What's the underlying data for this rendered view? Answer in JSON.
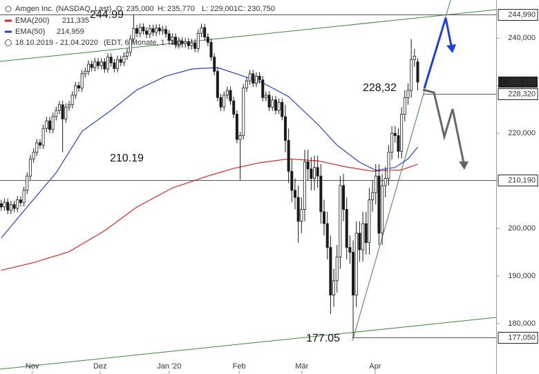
{
  "chart_data": {
    "type": "candlestick",
    "header": {
      "title": "Amgen Inc. (NASDAQ, Last)",
      "quote": [
        "O: 235,000",
        "H: 235,770",
        "L: 229,001",
        "C: 230,750"
      ],
      "date_range": "18.10.2019 - 21.04.2020",
      "period": "(EDT, 6 Monate, 1 Tag)"
    },
    "series": {
      "name": "Amgen Inc. (NASDAQ, Last)",
      "up_color": "#ffffff",
      "down_color": "#1a1a1a",
      "edge_color": "#1a1a1a",
      "open": [
        205.2,
        204.5,
        205.5,
        203.8,
        205,
        204.2,
        206,
        205.4,
        208,
        211,
        214.6,
        216,
        218,
        217.5,
        221,
        222.6,
        220.8,
        223.5,
        224.8,
        226,
        223,
        225.5,
        226,
        228,
        230,
        229.5,
        232.5,
        233,
        234.5,
        233.8,
        235,
        234.2,
        235,
        233.5,
        236,
        234.8,
        233.6,
        235.5,
        234.9,
        236.2,
        237,
        239.8,
        242,
        241,
        242.3,
        241.5,
        240.8,
        242,
        241.2,
        242.1,
        241.5,
        241.8,
        240.9,
        239.5,
        240.2,
        238.6,
        239.4,
        238.8,
        239.2,
        238.4,
        239,
        237.8,
        241,
        242.2,
        240.2,
        239.1,
        236,
        233,
        227.5,
        225.5,
        228,
        229,
        226.8,
        224,
        218.7,
        219.5,
        229.5,
        231,
        232.5,
        230.5,
        232,
        231.2,
        227.5,
        228,
        225.5,
        227,
        224.8,
        226.5,
        223.5,
        218.5,
        212,
        208,
        206.5,
        201.5,
        204,
        214,
        212.5,
        210.5,
        212.8,
        211,
        203.5,
        201,
        196,
        186,
        189,
        194,
        209,
        204,
        196,
        195,
        186,
        199,
        195.5,
        201,
        197,
        206,
        207.5,
        211,
        199,
        209,
        210.5,
        216,
        220,
        219.5,
        216.2,
        224,
        227.5,
        229,
        235.5,
        235
      ],
      "high": [
        206.0,
        206.3,
        206.3,
        205.8,
        205.8,
        206.8,
        206.8,
        208.8,
        211.8,
        215.4,
        216.8,
        218.8,
        218.8,
        221.8,
        223.4,
        223.4,
        224.3,
        225.6,
        226.8,
        226.8,
        226.3,
        226.8,
        228.8,
        230.8,
        230.8,
        233.3,
        233.8,
        235.3,
        235.3,
        235.8,
        235.8,
        235.8,
        235.8,
        236.8,
        236.8,
        235.6,
        236.3,
        236.3,
        237.0,
        237.8,
        240.6,
        244.99,
        242.8,
        243.1,
        243.1,
        242.3,
        242.8,
        242.8,
        242.9,
        242.9,
        242.6,
        242.6,
        241.7,
        241.0,
        241.0,
        240.2,
        240.2,
        240.0,
        240.0,
        239.8,
        239.8,
        241.8,
        243.0,
        243.0,
        241.0,
        239.9,
        236.8,
        233.8,
        228.3,
        228.8,
        229.8,
        229.8,
        227.6,
        224.8,
        220.3,
        230.3,
        231.8,
        233.3,
        233.3,
        232.8,
        232.8,
        232.0,
        228.8,
        228.8,
        227.8,
        227.8,
        227.3,
        227.3,
        226.0,
        221.0,
        214.5,
        210.5,
        209.0,
        206.5,
        216.5,
        216.5,
        215.0,
        215.3,
        215.3,
        213.5,
        206.0,
        203.5,
        198.5,
        191.5,
        196.5,
        211.0,
        211.5,
        206.5,
        198.5,
        197.5,
        201.5,
        201.5,
        203.5,
        203.5,
        208.5,
        210.0,
        213.5,
        213.5,
        211.5,
        213.0,
        217.5,
        221.5,
        221.5,
        221.0,
        225.5,
        229.0,
        230.5,
        239.8,
        237.7,
        235.77
      ],
      "low": [
        203.7,
        203.7,
        203.0,
        203.0,
        203.4,
        203.4,
        204.6,
        204.6,
        207.2,
        210.2,
        213.8,
        215.2,
        216.7,
        216.7,
        220.2,
        220.0,
        220.0,
        222.7,
        224.0,
        216.0,
        222.2,
        224.7,
        225.2,
        227.2,
        228.7,
        228.7,
        231.7,
        232.2,
        233.0,
        233.0,
        233.4,
        233.4,
        232.7,
        232.7,
        234.0,
        232.8,
        232.8,
        234.1,
        234.1,
        235.4,
        236.2,
        239.0,
        240.2,
        240.2,
        240.7,
        240.0,
        240.0,
        240.4,
        240.4,
        240.7,
        240.7,
        240.1,
        238.7,
        238.7,
        237.8,
        237.8,
        238.0,
        238.0,
        237.6,
        237.6,
        237.0,
        237.0,
        240.2,
        239.4,
        238.3,
        235.2,
        232.2,
        226.7,
        224.7,
        224.7,
        227.2,
        226.0,
        223.2,
        217.9,
        210.19,
        218.7,
        228.7,
        230.2,
        229.7,
        229.7,
        230.4,
        226.7,
        226.7,
        224.7,
        224.7,
        224.0,
        224.0,
        222.7,
        216.0,
        209.5,
        205.5,
        204.0,
        197.0,
        199.0,
        201.5,
        210.0,
        208.0,
        208.0,
        208.5,
        201.0,
        198.5,
        193.5,
        182.0,
        183.5,
        186.5,
        191.5,
        201.5,
        193.5,
        192.5,
        177.05,
        183.5,
        193.0,
        193.0,
        194.5,
        194.5,
        203.5,
        205.0,
        196.5,
        196.5,
        206.5,
        209.0,
        214.5,
        218.0,
        214.7,
        214.7,
        222.5,
        226.0,
        227.5,
        234.0,
        229.001
      ],
      "close": [
        204.5,
        205.5,
        203.8,
        205,
        204.2,
        206,
        205.4,
        208,
        211,
        214.6,
        216,
        218,
        217.5,
        221,
        222.6,
        220.8,
        223.5,
        224.8,
        226,
        223,
        225.5,
        226,
        228,
        230,
        229.5,
        232.5,
        233,
        234.5,
        233.8,
        235,
        234.2,
        235,
        233.5,
        236,
        234.8,
        233.6,
        235.5,
        234.9,
        236.2,
        237,
        239.8,
        242,
        241,
        242.3,
        241.5,
        240.8,
        242,
        241.2,
        242.1,
        241.5,
        241.8,
        240.9,
        239.5,
        240.2,
        238.6,
        239.4,
        238.8,
        239.2,
        238.4,
        239,
        237.8,
        241,
        242.2,
        240.2,
        239.1,
        236,
        233,
        227.5,
        225.5,
        228,
        229,
        226.8,
        224,
        218.7,
        219.5,
        229.5,
        231,
        232.5,
        230.5,
        232,
        231.2,
        227.5,
        228,
        225.5,
        227,
        224.8,
        226.5,
        223.5,
        218.5,
        212,
        208,
        206.5,
        201.5,
        204,
        214,
        212.5,
        210.5,
        212.8,
        211,
        203.5,
        201,
        196,
        186,
        189,
        194,
        209,
        204,
        196,
        195,
        186,
        199,
        195.5,
        201,
        197,
        206,
        207.5,
        211,
        199,
        209,
        210.5,
        216,
        220,
        219.5,
        216.2,
        224,
        227.5,
        229,
        235.5,
        236.2,
        230.75
      ]
    },
    "overlays": [
      {
        "name": "EMA(200)",
        "value_label": "211,335",
        "color": "#e02020",
        "x": [
          0,
          10,
          21,
          32,
          42,
          53,
          64,
          72,
          80,
          89,
          98,
          107,
          115,
          124,
          129
        ],
        "values": [
          191.2,
          192.8,
          195.1,
          199.5,
          204.5,
          208.5,
          211,
          212.6,
          213.8,
          214.6,
          214.2,
          212.9,
          212,
          212.3,
          213.5
        ]
      },
      {
        "name": "EMA(50)",
        "value_label": "214,959",
        "color": "#2040d0",
        "x": [
          0,
          8,
          17,
          25,
          34,
          42,
          51,
          59,
          67,
          75,
          81,
          89,
          98,
          104,
          111,
          116,
          122,
          126,
          129
        ],
        "values": [
          198,
          204.5,
          211.7,
          220.4,
          224.8,
          229.1,
          232,
          233.5,
          233.8,
          232,
          230.6,
          227.7,
          221.9,
          217.5,
          213.9,
          212.2,
          212.8,
          214.6,
          217.1
        ]
      }
    ],
    "xlim": [
      -0.4,
      153.3
    ],
    "xticks": [
      {
        "value": 9.6,
        "label": "Nov"
      },
      {
        "value": 30.6,
        "label": "Dez"
      },
      {
        "value": 52,
        "label": "Jan '20"
      },
      {
        "value": 73.7,
        "label": "Feb"
      },
      {
        "value": 93.1,
        "label": "Mär"
      },
      {
        "value": 115.8,
        "label": "Apr"
      }
    ],
    "ylim": [
      169.4,
      248
    ],
    "yticks": [
      {
        "value": 180,
        "label": "180,000"
      },
      {
        "value": 190,
        "label": "190,000"
      },
      {
        "value": 200,
        "label": "200,000"
      },
      {
        "value": 210,
        "label": "210,000"
      },
      {
        "value": 220,
        "label": "220,000"
      },
      {
        "value": 230,
        "label": "230,000"
      },
      {
        "value": 240,
        "label": "240,000"
      }
    ],
    "levels": [
      {
        "value": 244.99,
        "label": "244,990"
      },
      {
        "value": 228.32,
        "label": "228,320"
      },
      {
        "value": 210.19,
        "label": "210,190"
      },
      {
        "value": 177.05,
        "label": "177,050"
      }
    ],
    "last_price": {
      "value": 230.75,
      "label": "230,750"
    },
    "annotations": [
      "244.99",
      "210.19",
      "228,32",
      "177.05"
    ]
  }
}
